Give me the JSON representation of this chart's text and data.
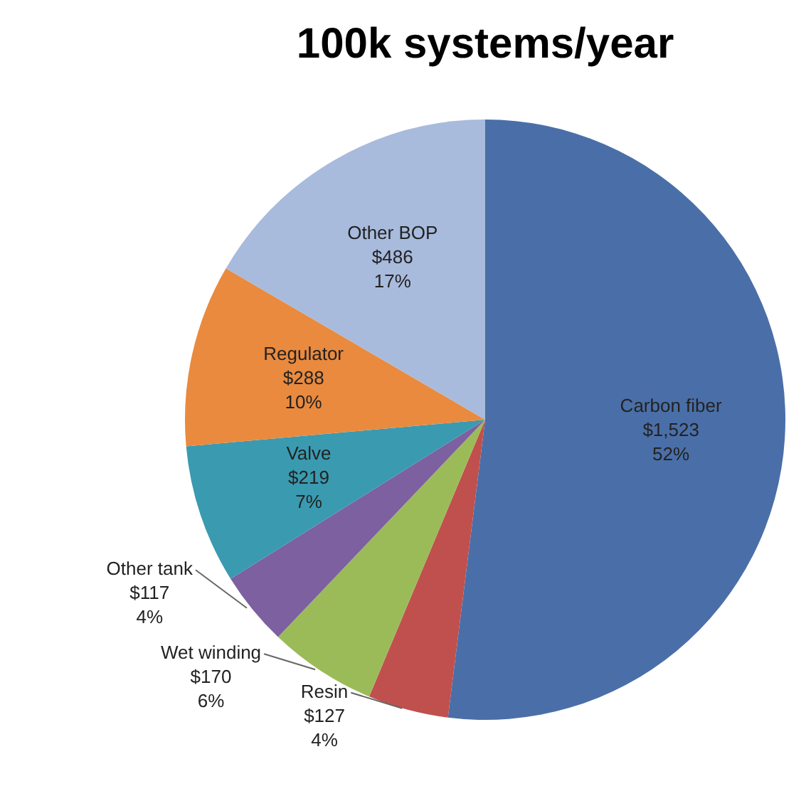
{
  "chart_data": {
    "type": "pie",
    "title": "100k systems/year",
    "categories": [
      "Carbon fiber",
      "Resin",
      "Wet winding",
      "Other tank",
      "Valve",
      "Regulator",
      "Other BOP"
    ],
    "values": [
      1523,
      127,
      170,
      117,
      219,
      288,
      486
    ],
    "colors": [
      "#4a6fa8",
      "#c0504d",
      "#9bbb59",
      "#7d60a0",
      "#3a9ab0",
      "#e98a3e",
      "#a8bbdc"
    ],
    "value_labels": [
      "$1,523\n52%",
      "$127\n4%",
      "$170\n6%",
      "$117\n4%",
      "$219\n7%",
      "$288\n10%",
      "$486\n17%"
    ]
  }
}
